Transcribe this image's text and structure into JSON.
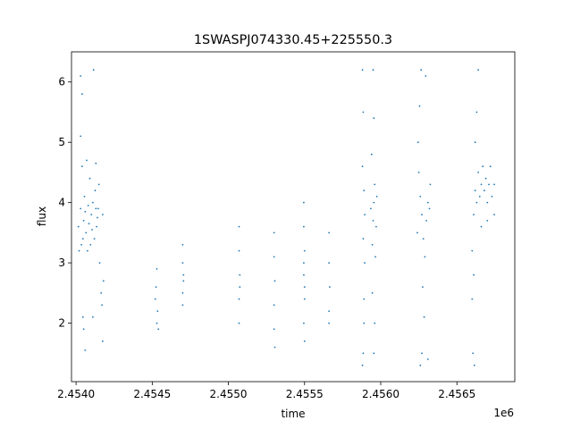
{
  "chart_data": {
    "type": "scatter",
    "title": "1SWASPJ074330.45+225550.3",
    "xlabel": "time",
    "ylabel": "flux",
    "x_multiplier_label": "1e6",
    "x_scale_factor": 1000000,
    "xlim": [
      2453970,
      2456880
    ],
    "ylim": [
      1.03,
      6.5
    ],
    "x_ticks": [
      2454000,
      2454500,
      2455000,
      2455500,
      2456000,
      2456500
    ],
    "x_tick_labels": [
      "2.4540",
      "2.4545",
      "2.4550",
      "2.4555",
      "2.4560",
      "2.4565"
    ],
    "y_ticks": [
      2,
      3,
      4,
      5,
      6
    ],
    "y_tick_labels": [
      "2",
      "3",
      "4",
      "5",
      "6"
    ],
    "grid": false,
    "legend": "none",
    "point_color": "#1f77b4",
    "series": [
      {
        "values": [
          {
            "x": 2454140,
            "y": 3.75
          },
          {
            "x": 2454135,
            "y": 3.6
          },
          {
            "x": 2454130,
            "y": 3.9
          },
          {
            "x": 2454125,
            "y": 4.2
          },
          {
            "x": 2454120,
            "y": 3.4
          },
          {
            "x": 2454110,
            "y": 4.0
          },
          {
            "x": 2454105,
            "y": 3.55
          },
          {
            "x": 2454100,
            "y": 3.8
          },
          {
            "x": 2454095,
            "y": 3.3
          },
          {
            "x": 2454090,
            "y": 4.4
          },
          {
            "x": 2454085,
            "y": 3.65
          },
          {
            "x": 2454080,
            "y": 3.95
          },
          {
            "x": 2454075,
            "y": 3.2
          },
          {
            "x": 2454070,
            "y": 4.7
          },
          {
            "x": 2454065,
            "y": 3.5
          },
          {
            "x": 2454060,
            "y": 3.85
          },
          {
            "x": 2454055,
            "y": 4.1
          },
          {
            "x": 2454050,
            "y": 3.7
          },
          {
            "x": 2454045,
            "y": 3.4
          },
          {
            "x": 2454040,
            "y": 4.6
          },
          {
            "x": 2454035,
            "y": 3.3
          },
          {
            "x": 2454030,
            "y": 3.9
          },
          {
            "x": 2454030,
            "y": 5.1
          },
          {
            "x": 2454030,
            "y": 6.1
          },
          {
            "x": 2454040,
            "y": 5.8
          },
          {
            "x": 2454045,
            "y": 2.1
          },
          {
            "x": 2454050,
            "y": 1.9
          },
          {
            "x": 2454060,
            "y": 1.55
          },
          {
            "x": 2454110,
            "y": 2.1
          },
          {
            "x": 2454115,
            "y": 6.2
          },
          {
            "x": 2454130,
            "y": 4.65
          },
          {
            "x": 2454150,
            "y": 4.3
          },
          {
            "x": 2454155,
            "y": 3.0
          },
          {
            "x": 2454165,
            "y": 2.5
          },
          {
            "x": 2454170,
            "y": 2.3
          },
          {
            "x": 2454175,
            "y": 1.7
          },
          {
            "x": 2454180,
            "y": 2.7
          },
          {
            "x": 2454175,
            "y": 3.8
          },
          {
            "x": 2454145,
            "y": 3.9
          },
          {
            "x": 2454015,
            "y": 3.6
          },
          {
            "x": 2454020,
            "y": 3.2
          },
          {
            "x": 2454530,
            "y": 2.9
          },
          {
            "x": 2454525,
            "y": 2.6
          },
          {
            "x": 2454535,
            "y": 2.2
          },
          {
            "x": 2454530,
            "y": 2.0
          },
          {
            "x": 2454520,
            "y": 2.4
          },
          {
            "x": 2454540,
            "y": 1.9
          },
          {
            "x": 2454700,
            "y": 3.3
          },
          {
            "x": 2454700,
            "y": 3.0
          },
          {
            "x": 2454705,
            "y": 2.8
          },
          {
            "x": 2454700,
            "y": 2.5
          },
          {
            "x": 2454700,
            "y": 2.3
          },
          {
            "x": 2454705,
            "y": 2.7
          },
          {
            "x": 2455070,
            "y": 3.6
          },
          {
            "x": 2455070,
            "y": 3.2
          },
          {
            "x": 2455075,
            "y": 2.8
          },
          {
            "x": 2455070,
            "y": 2.4
          },
          {
            "x": 2455070,
            "y": 2.0
          },
          {
            "x": 2455075,
            "y": 2.6
          },
          {
            "x": 2455300,
            "y": 3.5
          },
          {
            "x": 2455300,
            "y": 3.1
          },
          {
            "x": 2455305,
            "y": 2.7
          },
          {
            "x": 2455300,
            "y": 2.3
          },
          {
            "x": 2455300,
            "y": 1.9
          },
          {
            "x": 2455305,
            "y": 1.6
          },
          {
            "x": 2455495,
            "y": 4.0
          },
          {
            "x": 2455495,
            "y": 3.6
          },
          {
            "x": 2455500,
            "y": 3.2
          },
          {
            "x": 2455495,
            "y": 2.8
          },
          {
            "x": 2455500,
            "y": 2.4
          },
          {
            "x": 2455495,
            "y": 2.0
          },
          {
            "x": 2455500,
            "y": 1.7
          },
          {
            "x": 2455495,
            "y": 3.0
          },
          {
            "x": 2455500,
            "y": 2.6
          },
          {
            "x": 2455660,
            "y": 3.5
          },
          {
            "x": 2455660,
            "y": 3.0
          },
          {
            "x": 2455665,
            "y": 2.6
          },
          {
            "x": 2455660,
            "y": 2.2
          },
          {
            "x": 2455660,
            "y": 2.0
          },
          {
            "x": 2455895,
            "y": 3.8
          },
          {
            "x": 2455890,
            "y": 4.2
          },
          {
            "x": 2455885,
            "y": 3.4
          },
          {
            "x": 2455880,
            "y": 4.6
          },
          {
            "x": 2455895,
            "y": 3.0
          },
          {
            "x": 2455885,
            "y": 5.5
          },
          {
            "x": 2455880,
            "y": 6.2
          },
          {
            "x": 2455890,
            "y": 2.4
          },
          {
            "x": 2455885,
            "y": 1.5
          },
          {
            "x": 2455880,
            "y": 1.3
          },
          {
            "x": 2455890,
            "y": 2.0
          },
          {
            "x": 2455950,
            "y": 3.7
          },
          {
            "x": 2455955,
            "y": 4.0
          },
          {
            "x": 2455945,
            "y": 3.3
          },
          {
            "x": 2455960,
            "y": 4.3
          },
          {
            "x": 2455965,
            "y": 3.1
          },
          {
            "x": 2455940,
            "y": 4.8
          },
          {
            "x": 2455955,
            "y": 5.4
          },
          {
            "x": 2455950,
            "y": 6.2
          },
          {
            "x": 2455945,
            "y": 2.5
          },
          {
            "x": 2455960,
            "y": 2.0
          },
          {
            "x": 2455955,
            "y": 1.5
          },
          {
            "x": 2455970,
            "y": 3.6
          },
          {
            "x": 2455935,
            "y": 3.9
          },
          {
            "x": 2455975,
            "y": 4.1
          },
          {
            "x": 2456270,
            "y": 3.8
          },
          {
            "x": 2456260,
            "y": 4.1
          },
          {
            "x": 2456280,
            "y": 3.4
          },
          {
            "x": 2456250,
            "y": 4.5
          },
          {
            "x": 2456290,
            "y": 3.1
          },
          {
            "x": 2456245,
            "y": 5.0
          },
          {
            "x": 2456255,
            "y": 5.6
          },
          {
            "x": 2456265,
            "y": 6.2
          },
          {
            "x": 2456275,
            "y": 2.6
          },
          {
            "x": 2456285,
            "y": 2.1
          },
          {
            "x": 2456270,
            "y": 1.5
          },
          {
            "x": 2456260,
            "y": 1.3
          },
          {
            "x": 2456300,
            "y": 3.7
          },
          {
            "x": 2456310,
            "y": 4.0
          },
          {
            "x": 2456240,
            "y": 3.5
          },
          {
            "x": 2456320,
            "y": 3.9
          },
          {
            "x": 2456325,
            "y": 4.3
          },
          {
            "x": 2456295,
            "y": 6.1
          },
          {
            "x": 2456310,
            "y": 1.4
          },
          {
            "x": 2456600,
            "y": 3.2
          },
          {
            "x": 2456610,
            "y": 3.8
          },
          {
            "x": 2456620,
            "y": 4.2
          },
          {
            "x": 2456630,
            "y": 4.0
          },
          {
            "x": 2456640,
            "y": 4.5
          },
          {
            "x": 2456650,
            "y": 4.1
          },
          {
            "x": 2456660,
            "y": 4.3
          },
          {
            "x": 2456670,
            "y": 4.6
          },
          {
            "x": 2456680,
            "y": 4.2
          },
          {
            "x": 2456690,
            "y": 4.4
          },
          {
            "x": 2456700,
            "y": 4.0
          },
          {
            "x": 2456710,
            "y": 4.3
          },
          {
            "x": 2456720,
            "y": 4.6
          },
          {
            "x": 2456730,
            "y": 4.1
          },
          {
            "x": 2456745,
            "y": 4.3
          },
          {
            "x": 2456620,
            "y": 5.0
          },
          {
            "x": 2456630,
            "y": 5.5
          },
          {
            "x": 2456640,
            "y": 6.2
          },
          {
            "x": 2456600,
            "y": 2.4
          },
          {
            "x": 2456605,
            "y": 1.5
          },
          {
            "x": 2456615,
            "y": 1.3
          },
          {
            "x": 2456610,
            "y": 2.8
          },
          {
            "x": 2456660,
            "y": 3.6
          },
          {
            "x": 2456700,
            "y": 3.7
          },
          {
            "x": 2456745,
            "y": 3.8
          }
        ]
      }
    ]
  }
}
